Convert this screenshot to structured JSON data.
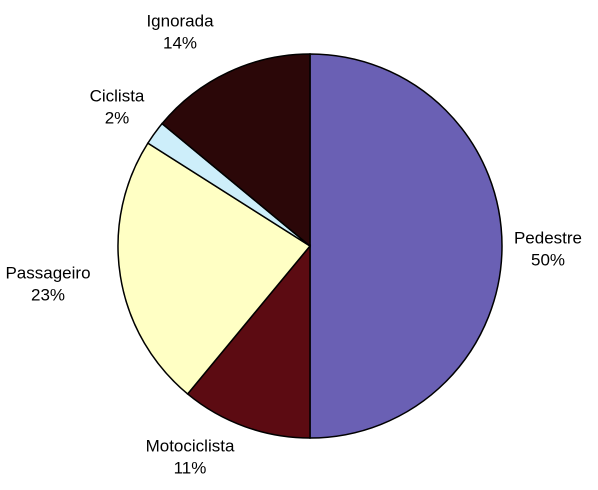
{
  "chart_data": {
    "type": "pie",
    "categories": [
      "Pedestre",
      "Motociclista",
      "Passageiro",
      "Ciclista",
      "Ignorada"
    ],
    "values": [
      50,
      11,
      23,
      2,
      14
    ],
    "value_labels": [
      "50%",
      "11%",
      "23%",
      "2%",
      "14%"
    ],
    "colors": [
      "#6a60b4",
      "#5c0b12",
      "#ffffc4",
      "#cdeefa",
      "#2b0708"
    ]
  }
}
